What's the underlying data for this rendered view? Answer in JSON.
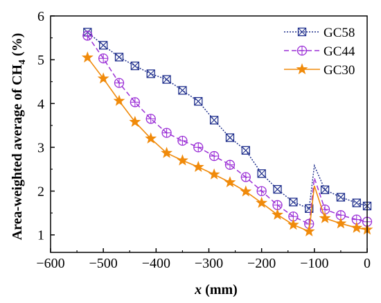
{
  "chart_data": {
    "type": "line",
    "xlabel_var": "x",
    "xlabel_unit": " (mm)",
    "ylabel_main": "Area-weighted average of CH",
    "ylabel_sub": "4",
    "ylabel_unit": " (%)",
    "xlim": [
      -600,
      0
    ],
    "ylim": [
      0.6,
      6
    ],
    "xticks": [
      -600,
      -500,
      -400,
      -300,
      -200,
      -100,
      0
    ],
    "xtick_labels": [
      "−600",
      "−500",
      "−400",
      "−300",
      "−200",
      "−100",
      "0"
    ],
    "yticks": [
      1,
      2,
      3,
      4,
      5,
      6
    ],
    "ytick_labels": [
      "1",
      "2",
      "3",
      "4",
      "5",
      "6"
    ],
    "legend_position": "top-right",
    "series": [
      {
        "name": "GC58",
        "color": "#1f2f8c",
        "marker": "square-x",
        "line_style": "dotted",
        "x": [
          -530,
          -500,
          -470,
          -440,
          -410,
          -380,
          -350,
          -320,
          -290,
          -260,
          -230,
          -200,
          -170,
          -140,
          -110,
          -100,
          -80,
          -50,
          -20,
          0
        ],
        "y": [
          5.63,
          5.33,
          5.06,
          4.86,
          4.68,
          4.55,
          4.3,
          4.05,
          3.62,
          3.22,
          2.93,
          2.4,
          2.04,
          1.75,
          1.6,
          2.58,
          2.03,
          1.86,
          1.73,
          1.66
        ],
        "marker_count": 19
      },
      {
        "name": "GC44",
        "color": "#9b2fd6",
        "marker": "circle-plus",
        "line_style": "dashed",
        "x": [
          -530,
          -500,
          -470,
          -440,
          -410,
          -380,
          -350,
          -320,
          -290,
          -260,
          -230,
          -200,
          -170,
          -140,
          -110,
          -100,
          -80,
          -50,
          -20,
          0
        ],
        "y": [
          5.55,
          5.03,
          4.47,
          4.03,
          3.65,
          3.33,
          3.15,
          3.0,
          2.8,
          2.6,
          2.32,
          2.0,
          1.68,
          1.42,
          1.25,
          2.3,
          1.58,
          1.45,
          1.35,
          1.3
        ],
        "marker_count": 19
      },
      {
        "name": "GC30",
        "color": "#f08a0a",
        "marker": "star",
        "line_style": "solid",
        "x": [
          -530,
          -500,
          -470,
          -440,
          -410,
          -380,
          -350,
          -320,
          -290,
          -260,
          -230,
          -200,
          -170,
          -140,
          -110,
          -100,
          -80,
          -50,
          -20,
          0
        ],
        "y": [
          5.05,
          4.57,
          4.06,
          3.58,
          3.2,
          2.87,
          2.7,
          2.55,
          2.38,
          2.2,
          1.99,
          1.73,
          1.46,
          1.23,
          1.08,
          2.12,
          1.38,
          1.26,
          1.16,
          1.12
        ],
        "marker_count": 19
      }
    ]
  }
}
